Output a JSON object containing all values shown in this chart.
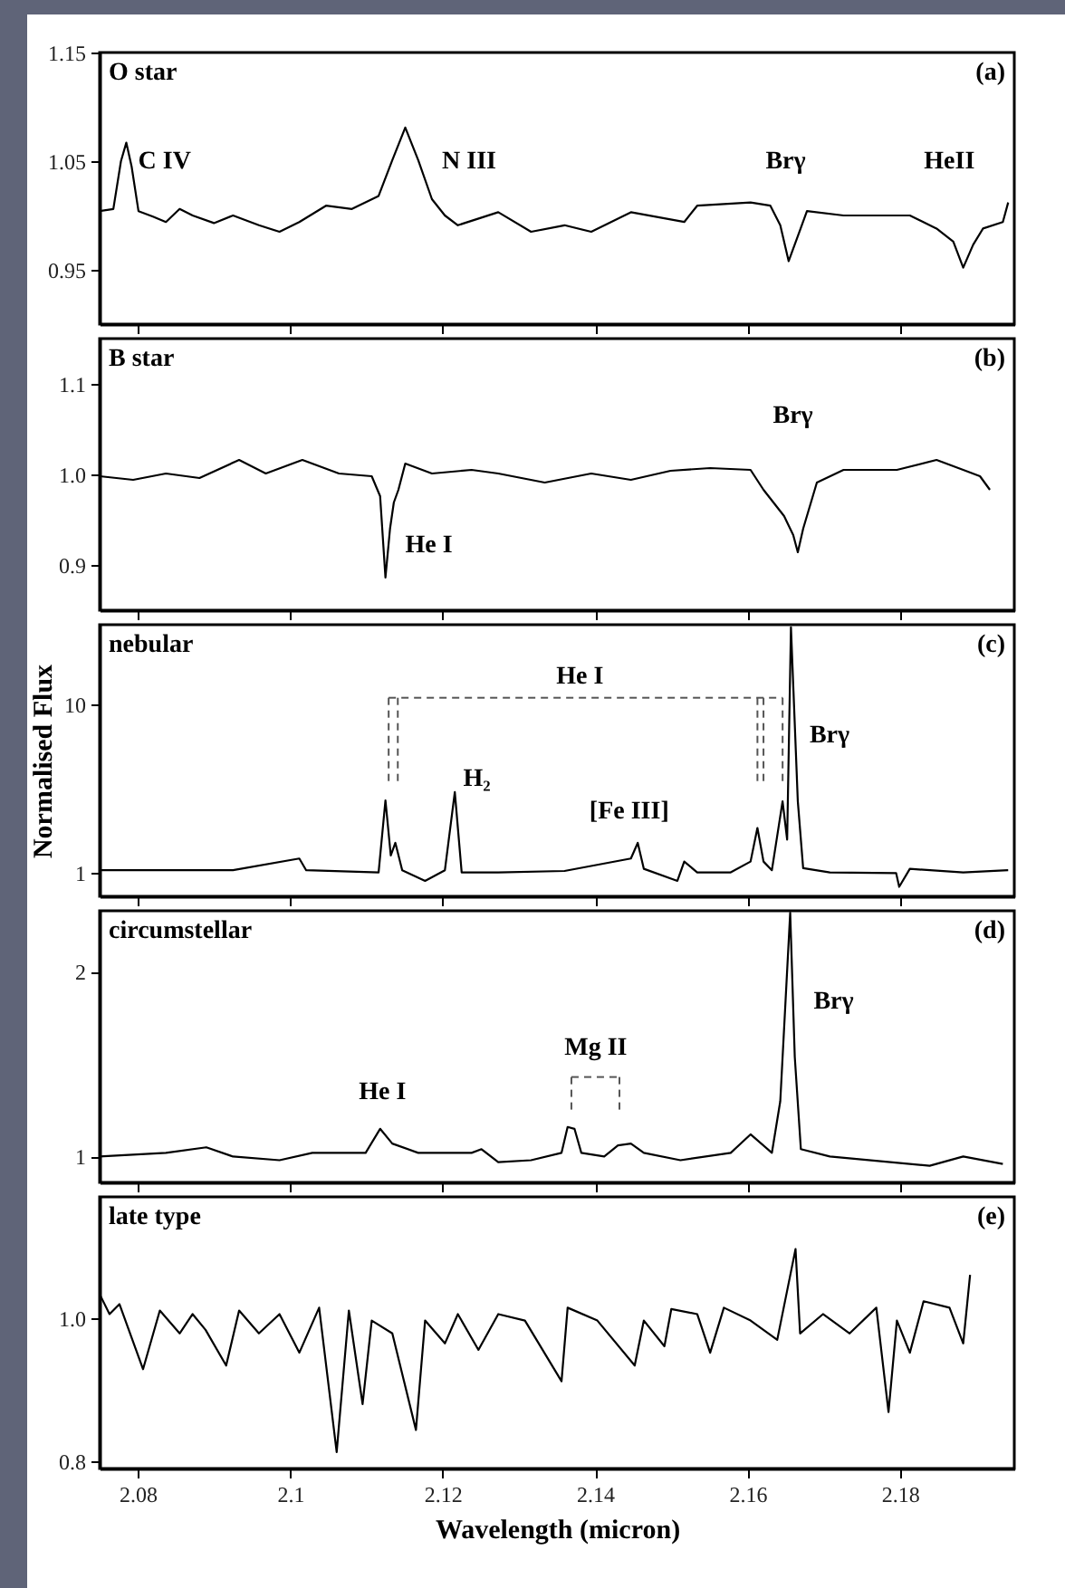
{
  "chart_data": [
    {
      "type": "line",
      "tick_labels": "y",
      "xlim": [
        2.075,
        2.195
      ],
      "ylim": [
        0.9,
        1.15
      ],
      "xticks": [
        2.08,
        2.1,
        2.12,
        2.14,
        2.16,
        2.18
      ],
      "yticks": [
        1.15,
        1.05,
        0.95
      ],
      "x": [
        2.075,
        2.0768,
        2.0778,
        2.0785,
        2.0792,
        2.0801,
        2.082,
        2.0837,
        2.0855,
        2.0872,
        2.09,
        2.0925,
        2.0959,
        2.0986,
        2.1012,
        2.1047,
        2.1081,
        2.1116,
        2.1134,
        2.1151,
        2.1168,
        2.1186,
        2.1203,
        2.122,
        2.1273,
        2.1316,
        2.136,
        2.1395,
        2.1447,
        2.1517,
        2.1534,
        2.1604,
        2.163,
        2.1643,
        2.1654,
        2.1665,
        2.1678,
        2.1726,
        2.1778,
        2.1813,
        2.1848,
        2.187,
        2.1883,
        2.1896,
        2.1909,
        2.1935,
        2.1942
      ],
      "series": [
        {
          "color": "#000000",
          "values": [
            1.004,
            1.006,
            1.05,
            1.067,
            1.045,
            1.004,
            0.999,
            0.994,
            1.006,
            1.0,
            0.993,
            1.0,
            0.991,
            0.985,
            0.994,
            1.009,
            1.006,
            1.018,
            1.051,
            1.081,
            1.051,
            1.015,
            1.0,
            0.991,
            1.003,
            0.985,
            0.991,
            0.985,
            1.003,
            0.994,
            1.009,
            1.012,
            1.009,
            0.991,
            0.958,
            0.979,
            1.004,
            1.0,
            1.0,
            1.0,
            0.988,
            0.976,
            0.952,
            0.973,
            0.988,
            0.994,
            1.012
          ]
        }
      ],
      "annotations": [
        "O star",
        "(a)",
        "C IV",
        "N III",
        "Brγ",
        "HeII"
      ]
    },
    {
      "type": "line",
      "tick_labels": "y",
      "xlim": [
        2.075,
        2.195
      ],
      "ylim": [
        0.85,
        1.15
      ],
      "xticks": [
        2.08,
        2.1,
        2.12,
        2.14,
        2.16,
        2.18
      ],
      "yticks": [
        1.1,
        {
          "value": 1,
          "label": "1.0"
        },
        0.9
      ],
      "x": [
        2.075,
        2.0794,
        2.0837,
        2.0881,
        2.0933,
        2.0968,
        2.1016,
        2.1064,
        2.1107,
        2.1118,
        2.1125,
        2.1131,
        2.1136,
        2.1142,
        2.1151,
        2.1186,
        2.1238,
        2.1273,
        2.1334,
        2.1395,
        2.1447,
        2.1499,
        2.1551,
        2.1604,
        2.1621,
        2.1648,
        2.166,
        2.1666,
        2.1673,
        2.1691,
        2.1726,
        2.1796,
        2.1848,
        2.1883,
        2.1905,
        2.1918
      ],
      "series": [
        {
          "color": "#000000",
          "values": [
            0.998,
            0.994,
            1.001,
            0.996,
            1.016,
            1.001,
            1.016,
            1.001,
            0.998,
            0.976,
            0.886,
            0.94,
            0.969,
            0.983,
            1.012,
            1.001,
            1.005,
            1.001,
            0.991,
            1.001,
            0.994,
            1.004,
            1.007,
            1.005,
            0.983,
            0.954,
            0.933,
            0.914,
            0.94,
            0.991,
            1.005,
            1.005,
            1.016,
            1.005,
            0.998,
            0.983
          ]
        }
      ],
      "annotations": [
        "B star",
        "(b)",
        "Brγ",
        "He I"
      ]
    },
    {
      "type": "line",
      "tick_labels": "y",
      "log": true,
      "ylabel": "Normalised Flux",
      "xlim": [
        2.075,
        2.195
      ],
      "ylim": [
        0.72,
        30
      ],
      "xticks": [
        2.08,
        2.1,
        2.12,
        2.14,
        2.16,
        2.18
      ],
      "yticks": [
        1,
        10
      ],
      "x": [
        2.075,
        2.0925,
        2.1012,
        2.1021,
        2.1116,
        2.1125,
        2.1132,
        2.1138,
        2.1147,
        2.1177,
        2.1203,
        2.1216,
        2.1225,
        2.1273,
        2.136,
        2.1447,
        2.1456,
        2.1464,
        2.1508,
        2.1517,
        2.1534,
        2.1578,
        2.1604,
        2.1613,
        2.1621,
        2.1632,
        2.1646,
        2.1652,
        2.1657,
        2.1666,
        2.1673,
        2.1708,
        2.1795,
        2.1799,
        2.1813,
        2.1883,
        2.1942
      ],
      "series": [
        {
          "color": "#000000",
          "values": [
            1.03,
            1.03,
            1.21,
            1.03,
            1.0,
            2.69,
            1.26,
            1.5,
            1.03,
            0.89,
            1.03,
            3.01,
            1.0,
            1.0,
            1.02,
            1.21,
            1.5,
            1.05,
            0.89,
            1.16,
            1.0,
            1.0,
            1.16,
            1.84,
            1.16,
            1.03,
            2.65,
            1.57,
            29,
            2.65,
            1.06,
            1.0,
            0.99,
            0.82,
            1.05,
            1.0,
            1.03
          ]
        }
      ],
      "annotations": [
        "nebular",
        "(c)",
        "He I",
        "H₂",
        "[Fe III]",
        "Brγ"
      ]
    },
    {
      "type": "line",
      "tick_labels": "y",
      "xlim": [
        2.075,
        2.195
      ],
      "ylim": [
        0.86,
        2.33
      ],
      "xticks": [
        2.08,
        2.1,
        2.12,
        2.14,
        2.16,
        2.18
      ],
      "yticks": [
        1,
        2
      ],
      "x": [
        2.075,
        2.0837,
        2.089,
        2.0925,
        2.0986,
        2.1029,
        2.1099,
        2.1118,
        2.1134,
        2.1168,
        2.1238,
        2.1251,
        2.1273,
        2.1316,
        2.1356,
        2.1364,
        2.1373,
        2.1382,
        2.1412,
        2.143,
        2.1447,
        2.1464,
        2.1512,
        2.1578,
        2.1604,
        2.1632,
        2.1643,
        2.165,
        2.1656,
        2.1662,
        2.167,
        2.1708,
        2.1839,
        2.1883,
        2.1935
      ],
      "series": [
        {
          "color": "#000000",
          "values": [
            1.0,
            1.02,
            1.05,
            1.0,
            0.98,
            1.02,
            1.02,
            1.15,
            1.07,
            1.02,
            1.02,
            1.04,
            0.97,
            0.98,
            1.02,
            1.16,
            1.15,
            1.02,
            1.0,
            1.06,
            1.07,
            1.02,
            0.98,
            1.02,
            1.12,
            1.02,
            1.3,
            1.85,
            2.32,
            1.54,
            1.04,
            1.0,
            0.95,
            1.0,
            0.96
          ]
        }
      ],
      "annotations": [
        "circumstellar",
        "(d)",
        "He I",
        "Mg II",
        "Brγ"
      ]
    },
    {
      "type": "line",
      "xlabel": "Wavelength (micron)",
      "xlim": [
        2.075,
        2.195
      ],
      "ylim": [
        0.79,
        1.17
      ],
      "xticks": [
        2.08,
        2.1,
        2.12,
        2.14,
        2.16,
        2.18
      ],
      "yticks": [
        {
          "value": 1,
          "label": "1.0"
        },
        0.8
      ],
      "x": [
        2.075,
        2.0763,
        2.0776,
        2.0807,
        2.0829,
        2.0855,
        2.0872,
        2.0889,
        2.0916,
        2.0933,
        2.0959,
        2.0986,
        2.1012,
        2.1038,
        2.1061,
        2.1077,
        2.1095,
        2.1107,
        2.1134,
        2.1165,
        2.1177,
        2.1203,
        2.122,
        2.1247,
        2.1273,
        2.1308,
        2.1356,
        2.1364,
        2.1403,
        2.1452,
        2.1464,
        2.1491,
        2.15,
        2.1534,
        2.1551,
        2.1569,
        2.1604,
        2.1639,
        2.1663,
        2.1669,
        2.1699,
        2.1734,
        2.1769,
        2.1785,
        2.1796,
        2.1813,
        2.1831,
        2.1865,
        2.1883,
        2.1892
      ],
      "series": [
        {
          "color": "#000000",
          "values": [
            1.034,
            1.006,
            1.02,
            0.929,
            1.011,
            0.979,
            1.006,
            0.984,
            0.934,
            1.011,
            0.979,
            1.006,
            0.952,
            1.015,
            0.813,
            1.011,
            0.88,
            0.997,
            0.979,
            0.844,
            0.997,
            0.965,
            1.006,
            0.956,
            1.006,
            0.997,
            0.912,
            1.015,
            0.997,
            0.934,
            0.997,
            0.961,
            1.013,
            1.006,
            0.952,
            1.015,
            0.997,
            0.97,
            1.097,
            0.979,
            1.006,
            0.979,
            1.015,
            0.869,
            0.997,
            0.952,
            1.024,
            1.015,
            0.965,
            1.061
          ]
        }
      ],
      "annotations": [
        "late type",
        "(e)"
      ]
    }
  ]
}
